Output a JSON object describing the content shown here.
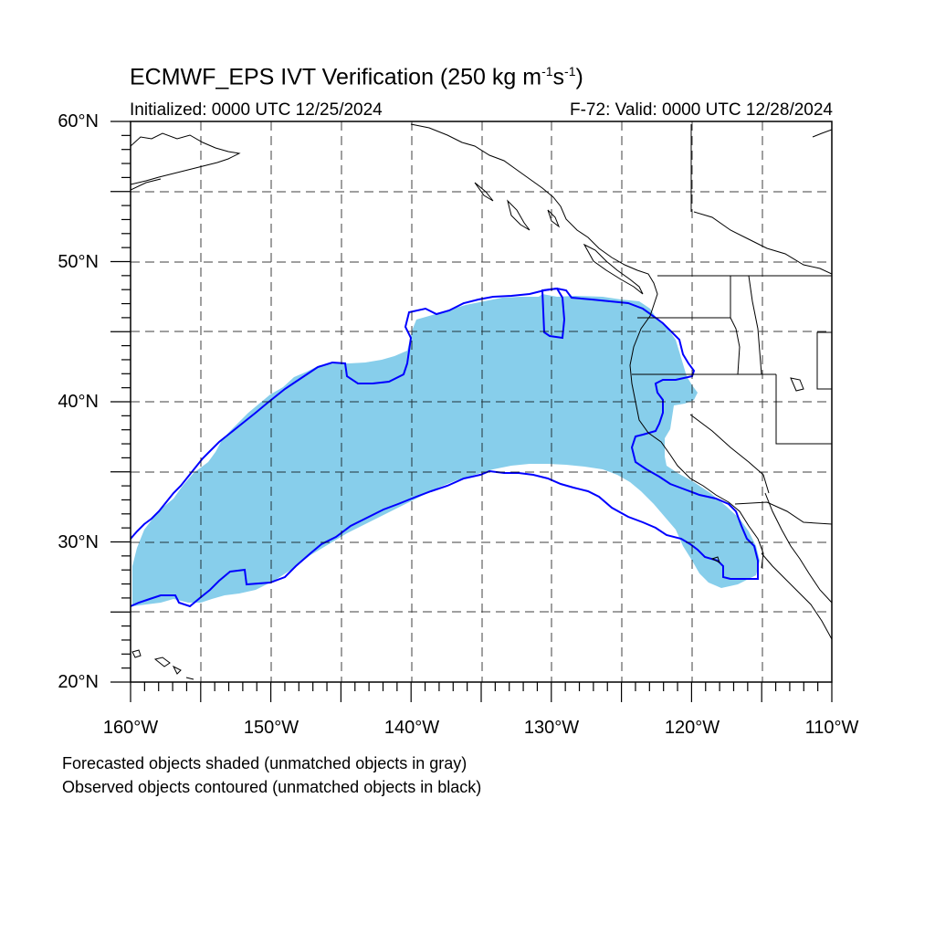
{
  "title": {
    "main": "ECMWF_EPS IVT Verification (250 kg m",
    "sup1": "-1",
    "mid": "s",
    "sup2": "-1",
    "end": ")"
  },
  "subtitle_left": "Initialized: 0000 UTC 12/25/2024",
  "subtitle_right": "F-72: Valid: 0000 UTC 12/28/2024",
  "map_extent": {
    "lon_min": -160,
    "lon_max": -110,
    "lat_min": 20,
    "lat_max": 60
  },
  "lat_labels": [
    "60°N",
    "50°N",
    "40°N",
    "30°N",
    "20°N"
  ],
  "lon_labels": [
    "160°W",
    "150°W",
    "140°W",
    "130°W",
    "120°W",
    "110°W"
  ],
  "grid": {
    "dashed": true,
    "lon_step_deg": 5,
    "lat_step_deg": 5
  },
  "colors": {
    "forecast_fill": "#87ceeb",
    "observed_contour": "#0000ff",
    "coastline": "#000000",
    "grid": "#000000"
  },
  "legend": {
    "line1": "Forecasted objects shaded (unmatched objects in gray)",
    "line2": "Observed objects contoured (unmatched objects in black)"
  }
}
